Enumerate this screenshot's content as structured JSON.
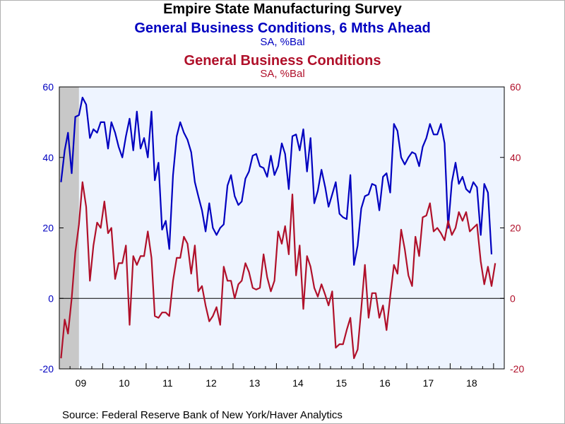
{
  "chart_data": {
    "type": "line",
    "title": "Empire State Manufacturing Survey",
    "subtitles": [
      {
        "text": "General Business Conditions, 6 Mths Ahead",
        "units": "SA, %Bal",
        "color": "#0000c0"
      },
      {
        "text": "General Business Conditions",
        "units": "SA, %Bal",
        "color": "#b0102a"
      }
    ],
    "source": "Source:  Federal Reserve Bank of New York/Haver Analytics",
    "x_ticks": [
      "09",
      "10",
      "11",
      "12",
      "13",
      "14",
      "15",
      "16",
      "17",
      "18"
    ],
    "x_range": [
      "2009-01",
      "2019-03"
    ],
    "y_left": {
      "min": -20,
      "max": 60,
      "ticks": [
        "-20",
        "0",
        "20",
        "40",
        "60"
      ],
      "color": "#0000c0"
    },
    "y_right": {
      "min": -20,
      "max": 60,
      "ticks": [
        "-20",
        "0",
        "20",
        "40",
        "60"
      ],
      "color": "#b0102a"
    },
    "recession_shading": {
      "from": "2009-01",
      "to": "2009-06",
      "color": "#c8c8c8"
    },
    "zero_line": true,
    "plot_background": "#eef4ff",
    "series": [
      {
        "name": "General Business Conditions, 6 Mths Ahead",
        "color": "#0000c0",
        "start": "2009-01",
        "values": [
          33,
          42,
          47,
          35.5,
          51.5,
          52,
          57,
          55,
          45.5,
          48,
          47,
          50,
          50,
          42.5,
          50,
          47,
          43,
          40,
          46,
          51,
          42,
          53,
          42.5,
          45.5,
          40,
          53,
          33.5,
          38.5,
          19.5,
          22,
          14,
          35,
          46,
          50,
          47,
          45,
          41.5,
          33,
          29,
          25,
          19,
          27,
          20,
          18,
          20,
          21,
          32,
          35,
          29,
          26.5,
          27.5,
          34,
          36,
          40.5,
          41,
          37.5,
          37,
          34.5,
          40.5,
          35,
          37.5,
          44,
          41,
          31,
          46,
          46.5,
          42,
          48,
          36,
          45.5,
          27,
          30.5,
          36.5,
          31.5,
          26,
          29.5,
          33,
          24,
          23,
          22.5,
          35,
          9.5,
          15,
          25.5,
          29,
          29.5,
          32.5,
          32,
          25,
          34.5,
          35.5,
          30,
          49.5,
          47.5,
          40,
          38,
          40,
          41.5,
          41,
          37.5,
          43,
          45.5,
          49.5,
          46.5,
          46.5,
          49.5,
          44,
          20,
          33,
          38.5,
          32.5,
          34.5,
          31,
          30,
          33,
          31.5,
          18,
          32.5,
          30,
          12.5
        ]
      },
      {
        "name": "General Business Conditions",
        "color": "#b0102a",
        "start": "2009-01",
        "values": [
          -17,
          -6,
          -10,
          0,
          13,
          21,
          33,
          26,
          5,
          15,
          21.5,
          20,
          27.5,
          18.5,
          20,
          5.5,
          10,
          10,
          15,
          -7.5,
          12,
          9.5,
          12,
          12,
          19,
          11.5,
          -5,
          -5.5,
          -4,
          -4,
          -5,
          5,
          11.5,
          11.5,
          17.5,
          15.5,
          7,
          15,
          2,
          3.5,
          -2,
          -6.5,
          -5,
          -2.5,
          -7.5,
          9,
          5,
          5,
          0,
          4,
          5,
          10,
          7.5,
          3,
          2.5,
          3,
          12.5,
          6,
          2,
          5,
          19,
          15.5,
          20.5,
          12.5,
          29.5,
          6.5,
          15,
          -3,
          12,
          9,
          3,
          0.5,
          4,
          1,
          -2,
          2,
          -14,
          -13,
          -13,
          -9,
          -5.5,
          -17,
          -14.5,
          -3,
          9.5,
          -5.5,
          1.5,
          1.5,
          -5.5,
          -2,
          -9,
          0.5,
          9.5,
          7,
          19.5,
          14,
          6.5,
          3.5,
          17.5,
          12,
          23,
          23.5,
          27,
          19,
          20,
          18.5,
          16.5,
          22,
          18,
          20,
          24.5,
          22,
          24.5,
          19,
          20,
          21,
          10.5,
          4,
          9,
          3.5,
          10
        ]
      }
    ]
  }
}
